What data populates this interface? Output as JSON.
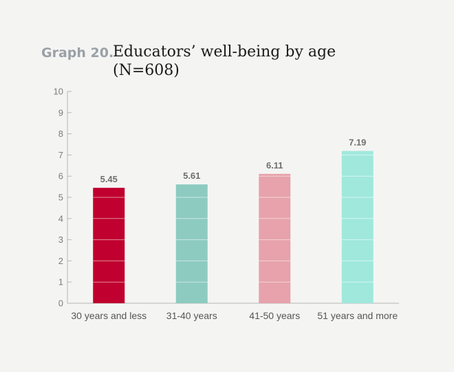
{
  "header": {
    "graph_label": "Graph 20.",
    "title_line1": "Educators’ well-being by age",
    "title_line2": "(N=608)"
  },
  "chart_data": {
    "type": "bar",
    "title": "Educators’ well-being by age",
    "subtitle": "(N=608)",
    "xlabel": "",
    "ylabel": "",
    "ylim": [
      0,
      10
    ],
    "yticks": [
      0,
      1,
      2,
      3,
      4,
      5,
      6,
      7,
      8,
      9,
      10
    ],
    "categories": [
      "30 years and less",
      "31-40 years",
      "41-50 years",
      "51 years and more"
    ],
    "values": [
      5.45,
      5.61,
      6.11,
      7.19
    ],
    "value_labels": [
      "5.45",
      "5.61",
      "6.11",
      "7.19"
    ],
    "colors": [
      "#c0002e",
      "#8dcbc0",
      "#e7a2ab",
      "#a0e8dc"
    ],
    "grid": false,
    "legend": "none"
  }
}
